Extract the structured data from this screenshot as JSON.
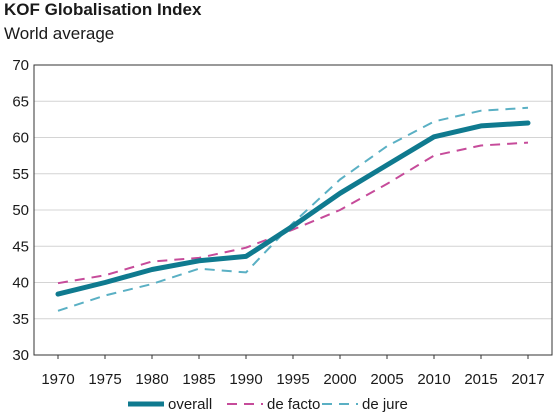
{
  "chart_data": {
    "type": "line",
    "title": "KOF Globalisation Index",
    "subtitle": "World average",
    "xlabel": "",
    "ylabel": "",
    "x": [
      1970,
      1975,
      1980,
      1985,
      1990,
      1995,
      2000,
      2005,
      2010,
      2015,
      2017
    ],
    "ylim": [
      30,
      70
    ],
    "yticks": [
      30,
      35,
      40,
      45,
      50,
      55,
      60,
      65,
      70
    ],
    "grid": "horizontal",
    "legend_position": "bottom",
    "series": [
      {
        "name": "overall",
        "color": "#0f7a8f",
        "style": "solid",
        "values": [
          38.4,
          40.0,
          41.8,
          43.0,
          43.6,
          47.8,
          52.3,
          56.2,
          60.1,
          61.6,
          62.0
        ]
      },
      {
        "name": "de facto",
        "color": "#c64b9a",
        "style": "dashed",
        "values": [
          39.9,
          41.0,
          42.9,
          43.4,
          44.8,
          47.3,
          50.0,
          53.6,
          57.5,
          58.9,
          59.3
        ]
      },
      {
        "name": "de jure",
        "color": "#5ab0c4",
        "style": "dashed",
        "values": [
          36.1,
          38.2,
          39.8,
          41.9,
          41.4,
          48.2,
          54.2,
          58.8,
          62.2,
          63.7,
          64.1
        ]
      }
    ]
  }
}
